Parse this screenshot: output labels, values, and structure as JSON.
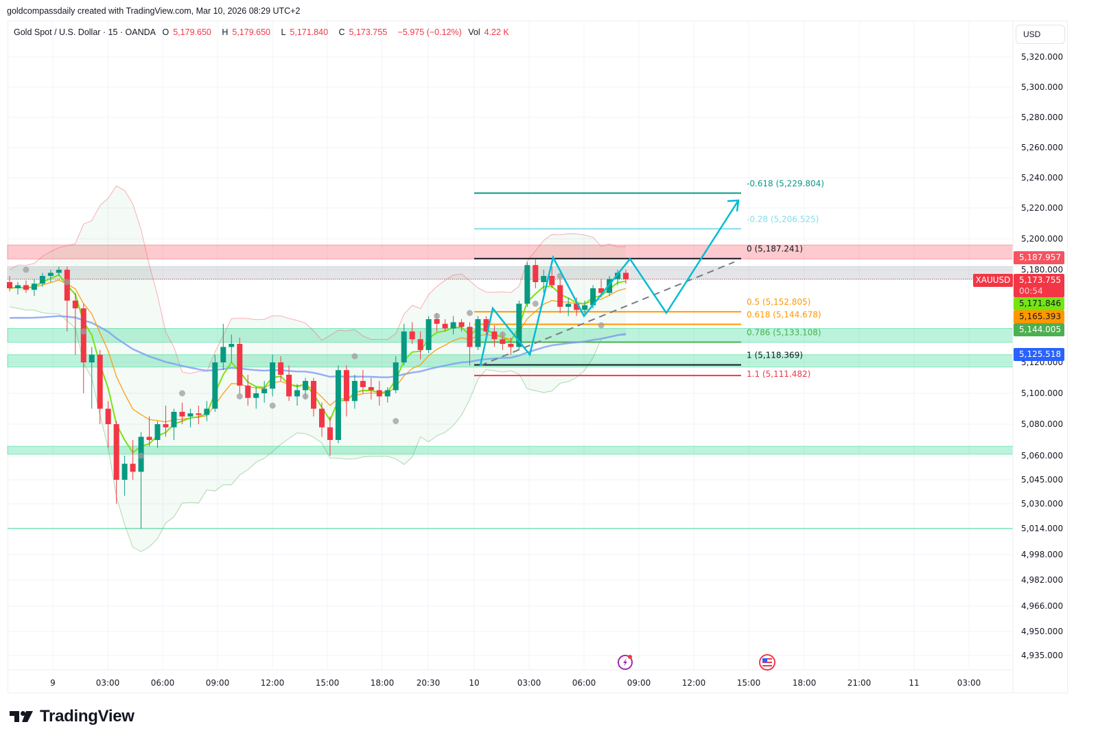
{
  "header": {
    "attribution": "goldcompassdaily created with TradingView.com, Mar 10, 2026 08:29 UTC+2"
  },
  "legend": {
    "symbol": "Gold Spot / U.S. Dollar · 15 · OANDA",
    "open_label": "O",
    "open": "5,179.650",
    "high_label": "H",
    "high": "5,179.650",
    "low_label": "L",
    "low": "5,171.840",
    "close_label": "C",
    "close": "5,173.755",
    "change": "−5.975 (−0.12%)",
    "vol_label": "Vol",
    "vol": "4.22 K"
  },
  "price_scale": {
    "currency": "USD",
    "ticks": [
      "5,320.000",
      "5,300.000",
      "5,280.000",
      "5,260.000",
      "5,240.000",
      "5,220.000",
      "5,200.000",
      "5,180.000",
      "5,120.000",
      "5,100.000",
      "5,080.000",
      "5,060.000",
      "5,045.000",
      "5,030.000",
      "5,014.000",
      "4,998.000",
      "4,982.000",
      "4,966.000",
      "4,950.000",
      "4,935.000"
    ],
    "tags": [
      {
        "value": "5,187.957",
        "color": "#f7525f"
      },
      {
        "value": "5,173.755",
        "countdown": "00:54",
        "color": "#f23645"
      },
      {
        "value": "5,171.846",
        "color": "#76e413"
      },
      {
        "value": "5,165.393",
        "color": "#ff9800"
      },
      {
        "value": "5,144.005",
        "color": "#4caf50"
      },
      {
        "value": "5,125.518",
        "color": "#2962ff"
      }
    ],
    "symbol_tag": "XAUUSD"
  },
  "time_scale": {
    "ticks": [
      "9",
      "03:00",
      "06:00",
      "09:00",
      "12:00",
      "15:00",
      "18:00",
      "20:30",
      "10",
      "03:00",
      "06:00",
      "09:00",
      "12:00",
      "15:00",
      "18:00",
      "21:00",
      "11",
      "03:00"
    ]
  },
  "fibonacci": [
    {
      "label": "-0.618 (5,229.804)",
      "color": "#089981"
    },
    {
      "label": "-0.28 (5,206.525)",
      "color": "#80deea"
    },
    {
      "label": "0 (5,187.241)",
      "color": "#131722"
    },
    {
      "label": "0.5 (5,152.805)",
      "color": "#ff9800"
    },
    {
      "label": "0.618 (5,144.678)",
      "color": "#ff9800"
    },
    {
      "label": "0.786 (5,133.108)",
      "color": "#4caf50"
    },
    {
      "label": "1 (5,118.369)",
      "color": "#131722"
    },
    {
      "label": "1.1 (5,111.482)",
      "color": "#f23645"
    }
  ],
  "events": [
    {
      "icon": "lightning-icon",
      "color": "#9c27b0"
    },
    {
      "icon": "us-flag-icon",
      "color": "#f23645"
    }
  ],
  "footer": {
    "brand": "TradingView"
  },
  "colors": {
    "up": "#089981",
    "down": "#f23645",
    "ema_fast": "#76e413",
    "ema_slow": "#ff9800",
    "ma_long": "#7b9cf5",
    "projection": "#00bcd4"
  },
  "chart_data": {
    "type": "candlestick",
    "title": "Gold Spot / U.S. Dollar · 15 · OANDA",
    "symbol": "XAUUSD",
    "interval": "15",
    "xlabel": "",
    "ylabel": "USD",
    "ylim": [
      4935,
      5330
    ],
    "x_ticks": [
      "9",
      "03:00",
      "06:00",
      "09:00",
      "12:00",
      "15:00",
      "18:00",
      "20:30",
      "10",
      "03:00",
      "06:00",
      "09:00",
      "12:00",
      "15:00",
      "18:00",
      "21:00",
      "11",
      "03:00"
    ],
    "y_ticks": [
      5320,
      5300,
      5280,
      5260,
      5240,
      5220,
      5200,
      5180,
      5120,
      5100,
      5080,
      5060,
      5045,
      5030,
      5014,
      4998,
      4982,
      4966,
      4950,
      4935
    ],
    "last_ohlc": {
      "open": 5179.65,
      "high": 5179.65,
      "low": 5171.84,
      "close": 5173.755,
      "change": -5.975,
      "change_pct": -0.12,
      "volume": "4.22K"
    },
    "indicator_values": {
      "ema_fast": 5171.846,
      "ema_slow": 5165.393,
      "bb_lower_or_ma": 5144.005,
      "ma_long": 5125.518,
      "resistance_tag": 5187.957
    },
    "fib_levels": [
      {
        "level": -0.618,
        "price": 5229.804
      },
      {
        "level": -0.28,
        "price": 5206.525
      },
      {
        "level": 0,
        "price": 5187.241
      },
      {
        "level": 0.5,
        "price": 5152.805
      },
      {
        "level": 0.618,
        "price": 5144.678
      },
      {
        "level": 0.786,
        "price": 5133.108
      },
      {
        "level": 1,
        "price": 5118.369
      },
      {
        "level": 1.1,
        "price": 5111.482
      }
    ],
    "zones": [
      {
        "name": "resistance",
        "from": 5187,
        "to": 5196,
        "color": "#f7525f"
      },
      {
        "name": "current-range",
        "from": 5174,
        "to": 5182,
        "color": "#b2b5be"
      },
      {
        "name": "support-1",
        "from": 5133,
        "to": 5142,
        "color": "#22d68a"
      },
      {
        "name": "support-2",
        "from": 5117,
        "to": 5125,
        "color": "#22d68a"
      },
      {
        "name": "support-3",
        "from": 5061,
        "to": 5066,
        "color": "#22d68a"
      },
      {
        "name": "support-line",
        "from": 5014,
        "to": 5014,
        "color": "#22d68a"
      }
    ],
    "candles_approx": [
      [
        5172,
        5176,
        5166,
        5168
      ],
      [
        5168,
        5172,
        5164,
        5170
      ],
      [
        5170,
        5173,
        5165,
        5167
      ],
      [
        5167,
        5174,
        5163,
        5171
      ],
      [
        5171,
        5178,
        5169,
        5176
      ],
      [
        5176,
        5180,
        5172,
        5178
      ],
      [
        5178,
        5182,
        5176,
        5180
      ],
      [
        5180,
        5182,
        5140,
        5160
      ],
      [
        5160,
        5165,
        5125,
        5155
      ],
      [
        5155,
        5158,
        5100,
        5120
      ],
      [
        5120,
        5130,
        5090,
        5125
      ],
      [
        5125,
        5128,
        5080,
        5090
      ],
      [
        5090,
        5095,
        5065,
        5080
      ],
      [
        5080,
        5082,
        5030,
        5045
      ],
      [
        5045,
        5060,
        5035,
        5055
      ],
      [
        5055,
        5070,
        5045,
        5050
      ],
      [
        5050,
        5075,
        5014,
        5072
      ],
      [
        5072,
        5085,
        5066,
        5070
      ],
      [
        5070,
        5082,
        5065,
        5080
      ],
      [
        5080,
        5092,
        5072,
        5078
      ],
      [
        5078,
        5090,
        5070,
        5088
      ],
      [
        5088,
        5094,
        5080,
        5085
      ],
      [
        5085,
        5090,
        5078,
        5087
      ],
      [
        5087,
        5092,
        5080,
        5086
      ],
      [
        5086,
        5095,
        5082,
        5090
      ],
      [
        5090,
        5125,
        5088,
        5120
      ],
      [
        5120,
        5145,
        5115,
        5130
      ],
      [
        5130,
        5138,
        5120,
        5132
      ],
      [
        5132,
        5136,
        5100,
        5105
      ],
      [
        5105,
        5112,
        5092,
        5097
      ],
      [
        5097,
        5104,
        5090,
        5100
      ],
      [
        5100,
        5108,
        5094,
        5103
      ],
      [
        5103,
        5125,
        5098,
        5120
      ],
      [
        5120,
        5124,
        5108,
        5112
      ],
      [
        5112,
        5118,
        5095,
        5098
      ],
      [
        5098,
        5106,
        5092,
        5102
      ],
      [
        5102,
        5110,
        5096,
        5108
      ],
      [
        5108,
        5110,
        5085,
        5090
      ],
      [
        5090,
        5094,
        5072,
        5078
      ],
      [
        5078,
        5085,
        5060,
        5070
      ],
      [
        5070,
        5118,
        5068,
        5115
      ],
      [
        5115,
        5118,
        5085,
        5095
      ],
      [
        5095,
        5112,
        5090,
        5108
      ],
      [
        5108,
        5115,
        5100,
        5104
      ],
      [
        5104,
        5110,
        5096,
        5102
      ],
      [
        5102,
        5108,
        5092,
        5098
      ],
      [
        5098,
        5104,
        5094,
        5102
      ],
      [
        5102,
        5124,
        5100,
        5120
      ],
      [
        5120,
        5145,
        5118,
        5140
      ],
      [
        5140,
        5146,
        5132,
        5135
      ],
      [
        5135,
        5140,
        5122,
        5128
      ],
      [
        5128,
        5150,
        5126,
        5148
      ],
      [
        5148,
        5152,
        5140,
        5145
      ],
      [
        5145,
        5148,
        5140,
        5142
      ],
      [
        5142,
        5150,
        5138,
        5146
      ],
      [
        5146,
        5148,
        5140,
        5143
      ],
      [
        5143,
        5146,
        5118,
        5130
      ],
      [
        5130,
        5150,
        5128,
        5148
      ],
      [
        5148,
        5150,
        5138,
        5140
      ],
      [
        5140,
        5144,
        5130,
        5135
      ],
      [
        5135,
        5140,
        5128,
        5132
      ],
      [
        5132,
        5136,
        5125,
        5130
      ],
      [
        5130,
        5160,
        5128,
        5158
      ],
      [
        5158,
        5185,
        5156,
        5183
      ],
      [
        5183,
        5187,
        5168,
        5172
      ],
      [
        5172,
        5180,
        5165,
        5176
      ],
      [
        5176,
        5182,
        5168,
        5170
      ],
      [
        5170,
        5174,
        5152,
        5156
      ],
      [
        5156,
        5162,
        5150,
        5158
      ],
      [
        5158,
        5162,
        5150,
        5154
      ],
      [
        5154,
        5160,
        5150,
        5157
      ],
      [
        5157,
        5170,
        5155,
        5168
      ],
      [
        5168,
        5174,
        5162,
        5165
      ],
      [
        5165,
        5176,
        5163,
        5174
      ],
      [
        5174,
        5180,
        5170,
        5178
      ],
      [
        5178,
        5180,
        5171,
        5173.755
      ]
    ],
    "projection_path_prices": [
      5118,
      5150,
      5125,
      5187,
      5152,
      5187,
      5152,
      5225
    ],
    "annotations": [
      "Fib retracement tool",
      "Zig-zag projection path (cyan) ending with upward arrow to ~5,225",
      "Dashed grey ascending trend line"
    ]
  }
}
